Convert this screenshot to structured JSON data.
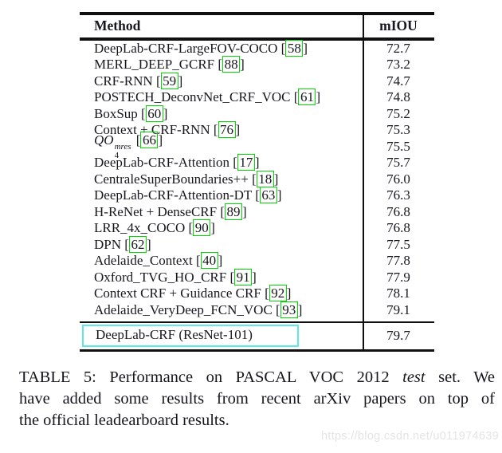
{
  "table": {
    "columns": {
      "method": "Method",
      "miou": "mIOU"
    },
    "rows": [
      {
        "method": "DeepLab-CRF-LargeFOV-COCO",
        "cite": "58",
        "miou": "72.7"
      },
      {
        "method": "MERL_DEEP_GCRF",
        "cite": "88",
        "miou": "73.2"
      },
      {
        "method": "CRF-RNN",
        "cite": "59",
        "miou": "74.7"
      },
      {
        "method": "POSTECH_DeconvNet_CRF_VOC",
        "cite": "61",
        "miou": "74.8"
      },
      {
        "method": "BoxSup",
        "cite": "60",
        "miou": "75.2"
      },
      {
        "method": "Context + CRF-RNN",
        "cite": "76",
        "miou": "75.3"
      },
      {
        "method": "QO",
        "math": {
          "sub": "4",
          "sup": "mres"
        },
        "cite": "66",
        "miou": "75.5"
      },
      {
        "method": "DeepLab-CRF-Attention",
        "cite": "17",
        "miou": "75.7"
      },
      {
        "method": "CentraleSuperBoundaries++",
        "cite": "18",
        "miou": "76.0"
      },
      {
        "method": "DeepLab-CRF-Attention-DT",
        "cite": "63",
        "miou": "76.3"
      },
      {
        "method": "H-ReNet + DenseCRF",
        "cite": "89",
        "miou": "76.8"
      },
      {
        "method": "LRR_4x_COCO",
        "cite": "90",
        "miou": "76.8"
      },
      {
        "method": "DPN",
        "cite": "62",
        "miou": "77.5"
      },
      {
        "method": "Adelaide_Context",
        "cite": "40",
        "miou": "77.8"
      },
      {
        "method": "Oxford_TVG_HO_CRF",
        "cite": "91",
        "miou": "77.9"
      },
      {
        "method": "Context CRF + Guidance CRF",
        "cite": "92",
        "miou": "78.1"
      },
      {
        "method": "Adelaide_VeryDeep_FCN_VOC",
        "cite": "93",
        "miou": "79.1"
      }
    ],
    "final_row": {
      "method": "DeepLab-CRF (ResNet-101)",
      "miou": "79.7"
    }
  },
  "caption": {
    "line1_pre": "TABLE 5: Performance on PASCAL VOC 2012 ",
    "line1_italic": "test",
    "line1_post": " set. We",
    "line2": "have added some results from recent arXiv papers on top of",
    "line3": "the official leadearboard results."
  },
  "watermark": "https://blog.csdn.net/u011974639",
  "colors": {
    "citation_box": "#00d900",
    "highlight_box": "#5ce9ec",
    "text": "#17171f",
    "rule": "#101010",
    "watermark": "#e4e4e4"
  },
  "chart_data": {
    "type": "table",
    "title": "Performance on PASCAL VOC 2012 test set",
    "columns": [
      "Method",
      "mIOU"
    ],
    "rows": [
      [
        "DeepLab-CRF-LargeFOV-COCO [58]",
        72.7
      ],
      [
        "MERL_DEEP_GCRF [88]",
        73.2
      ],
      [
        "CRF-RNN [59]",
        74.7
      ],
      [
        "POSTECH_DeconvNet_CRF_VOC [61]",
        74.8
      ],
      [
        "BoxSup [60]",
        75.2
      ],
      [
        "Context + CRF-RNN [76]",
        75.3
      ],
      [
        "QO_4^mres [66]",
        75.5
      ],
      [
        "DeepLab-CRF-Attention [17]",
        75.7
      ],
      [
        "CentraleSuperBoundaries++ [18]",
        76.0
      ],
      [
        "DeepLab-CRF-Attention-DT [63]",
        76.3
      ],
      [
        "H-ReNet + DenseCRF [89]",
        76.8
      ],
      [
        "LRR_4x_COCO [90]",
        76.8
      ],
      [
        "DPN [62]",
        77.5
      ],
      [
        "Adelaide_Context [40]",
        77.8
      ],
      [
        "Oxford_TVG_HO_CRF [91]",
        77.9
      ],
      [
        "Context CRF + Guidance CRF [92]",
        78.1
      ],
      [
        "Adelaide_VeryDeep_FCN_VOC [93]",
        79.1
      ],
      [
        "DeepLab-CRF (ResNet-101)",
        79.7
      ]
    ]
  }
}
